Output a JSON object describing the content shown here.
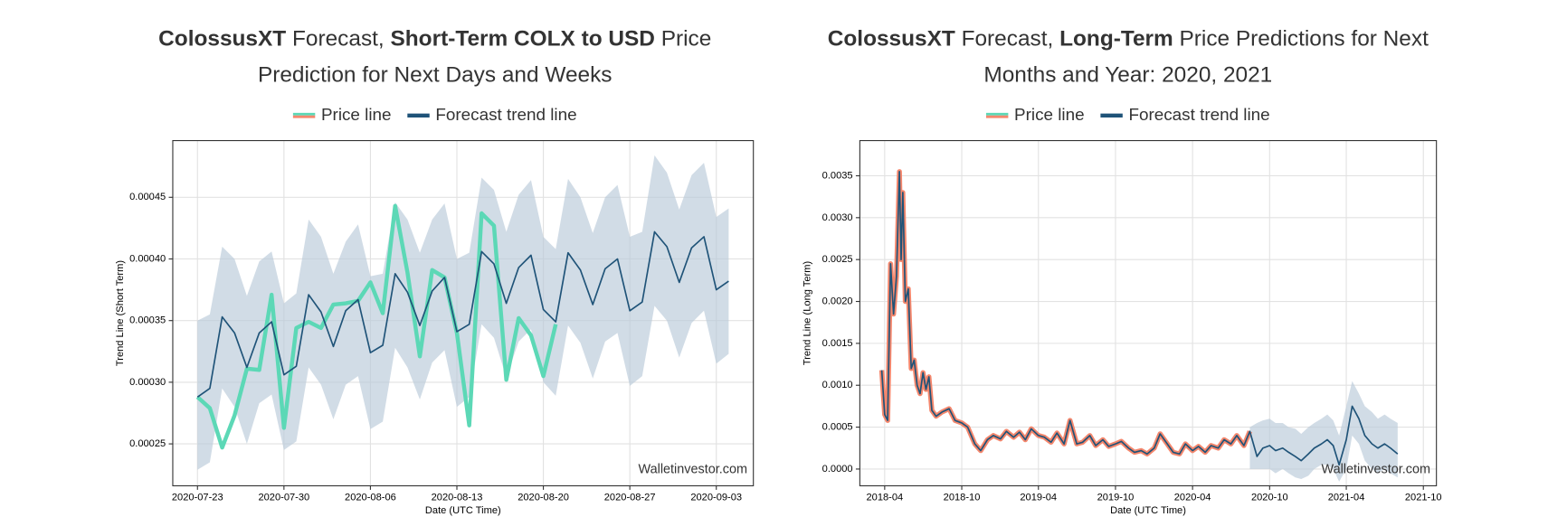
{
  "chart_data": [
    {
      "type": "line",
      "title": [
        [
          {
            "text": "ColossusXT",
            "bold": true
          },
          {
            "text": " Forecast, "
          },
          {
            "text": "Short-Term COLX to USD",
            "bold": true
          },
          {
            "text": " Price"
          }
        ],
        [
          {
            "text": "Prediction for Next Days and Weeks"
          }
        ]
      ],
      "xlabel": "Date (UTC Time)",
      "ylabel": "Trend Line (Short Term)",
      "watermark": "Walletinvestor.com",
      "legend": "upper center",
      "grid": true,
      "xlim": [
        "2020-07-21",
        "2020-09-06"
      ],
      "xticks": [
        "2020-07-23",
        "2020-07-30",
        "2020-08-06",
        "2020-08-13",
        "2020-08-20",
        "2020-08-27",
        "2020-09-03"
      ],
      "ylim": [
        0.000216,
        0.000496
      ],
      "yticks": [
        0.00025,
        {
          "value": 0.0003,
          "label": "0.00030"
        },
        0.00035,
        {
          "value": 0.0004,
          "label": "0.00040"
        },
        0.00045
      ],
      "x": [
        "2020-07-23",
        "2020-07-24",
        "2020-07-25",
        "2020-07-26",
        "2020-07-27",
        "2020-07-28",
        "2020-07-29",
        "2020-07-30",
        "2020-07-31",
        "2020-08-01",
        "2020-08-02",
        "2020-08-03",
        "2020-08-04",
        "2020-08-05",
        "2020-08-06",
        "2020-08-07",
        "2020-08-08",
        "2020-08-09",
        "2020-08-10",
        "2020-08-11",
        "2020-08-12",
        "2020-08-13",
        "2020-08-14",
        "2020-08-15",
        "2020-08-16",
        "2020-08-17",
        "2020-08-18",
        "2020-08-19",
        "2020-08-20",
        "2020-08-21",
        "2020-08-22",
        "2020-08-23",
        "2020-08-24",
        "2020-08-25",
        "2020-08-26",
        "2020-08-27",
        "2020-08-28",
        "2020-08-29",
        "2020-08-30",
        "2020-08-31",
        "2020-09-01",
        "2020-09-02",
        "2020-09-03",
        "2020-09-04"
      ],
      "band": {
        "color": "#b9cad8",
        "upper": [
          0.00035,
          0.000355,
          0.00041,
          0.0004,
          0.00037,
          0.000398,
          0.000406,
          0.000364,
          0.000372,
          0.000432,
          0.000418,
          0.000388,
          0.000414,
          0.000428,
          0.000386,
          0.000388,
          0.000446,
          0.000432,
          0.000405,
          0.000432,
          0.000445,
          0.0004,
          0.000405,
          0.000466,
          0.000456,
          0.000422,
          0.000452,
          0.000464,
          0.000418,
          0.000408,
          0.000465,
          0.00045,
          0.000421,
          0.00045,
          0.00046,
          0.000418,
          0.000422,
          0.000484,
          0.00047,
          0.00044,
          0.000468,
          0.000478,
          0.000434,
          0.000441
        ],
        "lower": [
          0.000229,
          0.000235,
          0.000295,
          0.00028,
          0.00025,
          0.000283,
          0.00029,
          0.000245,
          0.000252,
          0.000312,
          0.000298,
          0.00027,
          0.000298,
          0.000305,
          0.000262,
          0.000268,
          0.000328,
          0.000312,
          0.000286,
          0.000316,
          0.000326,
          0.00028,
          0.000288,
          0.000347,
          0.000336,
          0.000304,
          0.000333,
          0.000343,
          0.0003,
          0.000289,
          0.000346,
          0.000332,
          0.000303,
          0.000333,
          0.00034,
          0.000297,
          0.000305,
          0.000362,
          0.00035,
          0.00032,
          0.000348,
          0.000358,
          0.000315,
          0.000323
        ]
      },
      "series": [
        {
          "name": "Price line",
          "color": "#5cd8b6",
          "swatch_colors": [
            "#5cd8b6",
            "#f4876d"
          ],
          "width": 4,
          "values": [
            0.000288,
            0.000279,
            0.000247,
            0.000273,
            0.000311,
            0.00031,
            0.000371,
            0.000263,
            0.000344,
            0.000349,
            0.000344,
            0.000363,
            0.000364,
            0.000366,
            0.000381,
            0.000356,
            0.000443,
            0.000389,
            0.000321,
            0.000391,
            0.000385,
            0.00034,
            0.000265,
            0.000437,
            0.000427,
            0.000302,
            0.000352,
            0.000338,
            0.000305,
            0.000347,
            null,
            null,
            null,
            null,
            null,
            null,
            null,
            null,
            null,
            null,
            null,
            null,
            null,
            null
          ]
        },
        {
          "name": "Forecast trend line",
          "color": "#1f5378",
          "width": 1.5,
          "values": [
            0.000288,
            0.000295,
            0.000353,
            0.00034,
            0.000312,
            0.00034,
            0.000349,
            0.000306,
            0.000313,
            0.000371,
            0.000357,
            0.000329,
            0.000358,
            0.000367,
            0.000324,
            0.00033,
            0.000388,
            0.000373,
            0.000346,
            0.000374,
            0.000385,
            0.000341,
            0.000347,
            0.000406,
            0.000396,
            0.000364,
            0.000393,
            0.000403,
            0.000359,
            0.000349,
            0.000405,
            0.000391,
            0.000363,
            0.000392,
            0.0004,
            0.000358,
            0.000365,
            0.000422,
            0.00041,
            0.000381,
            0.000409,
            0.000418,
            0.000375,
            0.000382
          ]
        }
      ]
    },
    {
      "type": "line",
      "title": [
        [
          {
            "text": "ColossusXT",
            "bold": true
          },
          {
            "text": " Forecast, "
          },
          {
            "text": "Long-Term",
            "bold": true
          },
          {
            "text": " Price Predictions for Next"
          }
        ],
        [
          {
            "text": "Months and Year: 2020, 2021"
          }
        ]
      ],
      "xlabel": "Date (UTC Time)",
      "ylabel": "Trend Line (Long Term)",
      "watermark": "Walletinvestor.com",
      "legend": "upper center",
      "grid": true,
      "xlim": [
        "2018-02",
        "2021-11"
      ],
      "xticks": [
        "2018-04",
        "2018-10",
        "2019-04",
        "2019-10",
        "2020-04",
        "2020-10",
        "2021-04",
        "2021-10"
      ],
      "ylim": [
        -0.0002,
        0.00392
      ],
      "yticks": [
        {
          "value": 0,
          "label": "0.0000"
        },
        0.0005,
        {
          "value": 0.001,
          "label": "0.0010"
        },
        0.0015,
        {
          "value": 0.002,
          "label": "0.0020"
        },
        0.0025,
        {
          "value": 0.003,
          "label": "0.0030"
        },
        0.0035
      ],
      "x": [
        "2018-03-25",
        "2018-04-01",
        "2018-04-08",
        "2018-04-15",
        "2018-04-22",
        "2018-04-29",
        "2018-05-06",
        "2018-05-10",
        "2018-05-14",
        "2018-05-20",
        "2018-05-27",
        "2018-06-03",
        "2018-06-10",
        "2018-06-17",
        "2018-06-24",
        "2018-07-01",
        "2018-07-08",
        "2018-07-15",
        "2018-07-22",
        "2018-08-01",
        "2018-08-15",
        "2018-09-01",
        "2018-09-15",
        "2018-10-01",
        "2018-10-15",
        "2018-11-01",
        "2018-11-15",
        "2018-12-01",
        "2018-12-15",
        "2019-01-01",
        "2019-01-15",
        "2019-02-01",
        "2019-02-15",
        "2019-03-01",
        "2019-03-15",
        "2019-04-01",
        "2019-04-15",
        "2019-05-01",
        "2019-05-15",
        "2019-06-01",
        "2019-06-15",
        "2019-07-01",
        "2019-07-15",
        "2019-08-01",
        "2019-08-15",
        "2019-09-01",
        "2019-09-15",
        "2019-10-01",
        "2019-10-15",
        "2019-11-01",
        "2019-11-15",
        "2019-12-01",
        "2019-12-15",
        "2020-01-01",
        "2020-01-15",
        "2020-02-01",
        "2020-02-15",
        "2020-03-01",
        "2020-03-15",
        "2020-04-01",
        "2020-04-15",
        "2020-05-01",
        "2020-05-15",
        "2020-06-01",
        "2020-06-15",
        "2020-07-01",
        "2020-07-15",
        "2020-08-01",
        "2020-08-15",
        "2020-09-01",
        "2020-09-15",
        "2020-10-01",
        "2020-10-15",
        "2020-11-01",
        "2020-11-15",
        "2020-12-01",
        "2020-12-15",
        "2021-01-01",
        "2021-01-15",
        "2021-02-01",
        "2021-02-15",
        "2021-03-01",
        "2021-03-15",
        "2021-04-01",
        "2021-04-15",
        "2021-05-01",
        "2021-05-15",
        "2021-06-01",
        "2021-06-15",
        "2021-07-01",
        "2021-07-15",
        "2021-08-01"
      ],
      "band": {
        "color": "#b9cad8",
        "upper": [
          null,
          null,
          null,
          null,
          null,
          null,
          null,
          null,
          null,
          null,
          null,
          null,
          null,
          null,
          null,
          null,
          null,
          null,
          null,
          null,
          null,
          null,
          null,
          null,
          null,
          null,
          null,
          null,
          null,
          null,
          null,
          null,
          null,
          null,
          null,
          null,
          null,
          null,
          null,
          null,
          null,
          null,
          null,
          null,
          null,
          null,
          null,
          null,
          null,
          null,
          null,
          null,
          null,
          null,
          null,
          null,
          null,
          null,
          null,
          null,
          null,
          null,
          null,
          null,
          null,
          null,
          null,
          null,
          0.0005,
          0.00055,
          0.00058,
          0.0006,
          0.00055,
          0.00055,
          0.0005,
          0.00048,
          0.00042,
          0.0005,
          0.00055,
          0.0006,
          0.00065,
          0.00058,
          0.0004,
          0.00075,
          0.00105,
          0.0009,
          0.00075,
          0.00068,
          0.0006,
          0.00065,
          0.0006,
          0.00055
        ],
        "lower": [
          null,
          null,
          null,
          null,
          null,
          null,
          null,
          null,
          null,
          null,
          null,
          null,
          null,
          null,
          null,
          null,
          null,
          null,
          null,
          null,
          null,
          null,
          null,
          null,
          null,
          null,
          null,
          null,
          null,
          null,
          null,
          null,
          null,
          null,
          null,
          null,
          null,
          null,
          null,
          null,
          null,
          null,
          null,
          null,
          null,
          null,
          null,
          null,
          null,
          null,
          null,
          null,
          null,
          null,
          null,
          null,
          null,
          null,
          null,
          null,
          null,
          null,
          null,
          null,
          null,
          null,
          null,
          null,
          0.0,
          0.0,
          0.0,
          0.0,
          -5e-05,
          0.0,
          -5e-05,
          -0.0001,
          -0.00012,
          -8e-05,
          0.0,
          5e-05,
          5e-05,
          0.0,
          -0.00015,
          0.0,
          0.0004,
          0.0003,
          0.0001,
          0.0,
          -5e-05,
          0.0,
          -5e-05,
          -0.0001
        ]
      },
      "series": [
        {
          "name": "Price line",
          "color": "#f4876d",
          "swatch_colors": [
            "#5cd8b6",
            "#f4876d"
          ],
          "width": 5,
          "values": [
            0.00118,
            0.00065,
            0.00058,
            0.00245,
            0.00185,
            0.0023,
            0.00355,
            0.0025,
            0.0033,
            0.002,
            0.00215,
            0.0012,
            0.0013,
            0.001,
            0.0009,
            0.00115,
            0.00095,
            0.0011,
            0.0007,
            0.00063,
            0.00068,
            0.00072,
            0.00058,
            0.00055,
            0.0005,
            0.0003,
            0.00022,
            0.00035,
            0.0004,
            0.00036,
            0.00045,
            0.00038,
            0.00044,
            0.00035,
            0.00048,
            0.0004,
            0.00038,
            0.00032,
            0.00043,
            0.0003,
            0.00058,
            0.0003,
            0.00032,
            0.0004,
            0.00028,
            0.00035,
            0.00027,
            0.0003,
            0.00033,
            0.00025,
            0.0002,
            0.00022,
            0.00018,
            0.00025,
            0.00042,
            0.0003,
            0.0002,
            0.00018,
            0.0003,
            0.00022,
            0.00027,
            0.0002,
            0.00028,
            0.00025,
            0.00035,
            0.0003,
            0.0004,
            0.00028,
            0.00045,
            null,
            null,
            null,
            null,
            null,
            null,
            null,
            null,
            null,
            null,
            null,
            null,
            null,
            null,
            null,
            null,
            null,
            null,
            null,
            null,
            null,
            null,
            null
          ]
        },
        {
          "name": "Forecast trend line",
          "color": "#1f5378",
          "width": 1.5,
          "values": [
            0.00118,
            0.00065,
            0.00058,
            0.00245,
            0.00185,
            0.0023,
            0.00355,
            0.0025,
            0.0033,
            0.002,
            0.00215,
            0.0012,
            0.0013,
            0.001,
            0.0009,
            0.00115,
            0.00095,
            0.0011,
            0.0007,
            0.00063,
            0.00068,
            0.00072,
            0.00058,
            0.00055,
            0.0005,
            0.0003,
            0.00022,
            0.00035,
            0.0004,
            0.00036,
            0.00045,
            0.00038,
            0.00044,
            0.00035,
            0.00048,
            0.0004,
            0.00038,
            0.00032,
            0.00043,
            0.0003,
            0.00058,
            0.0003,
            0.00032,
            0.0004,
            0.00028,
            0.00035,
            0.00027,
            0.0003,
            0.00033,
            0.00025,
            0.0002,
            0.00022,
            0.00018,
            0.00025,
            0.00042,
            0.0003,
            0.0002,
            0.00018,
            0.0003,
            0.00022,
            0.00027,
            0.0002,
            0.00028,
            0.00025,
            0.00035,
            0.0003,
            0.0004,
            0.00028,
            0.00045,
            0.00015,
            0.00025,
            0.00028,
            0.00022,
            0.00025,
            0.0002,
            0.00015,
            0.0001,
            0.00018,
            0.00025,
            0.0003,
            0.00035,
            0.00028,
            5e-05,
            0.00035,
            0.00075,
            0.0006,
            0.0004,
            0.0003,
            0.00025,
            0.0003,
            0.00025,
            0.00018
          ]
        }
      ]
    }
  ]
}
